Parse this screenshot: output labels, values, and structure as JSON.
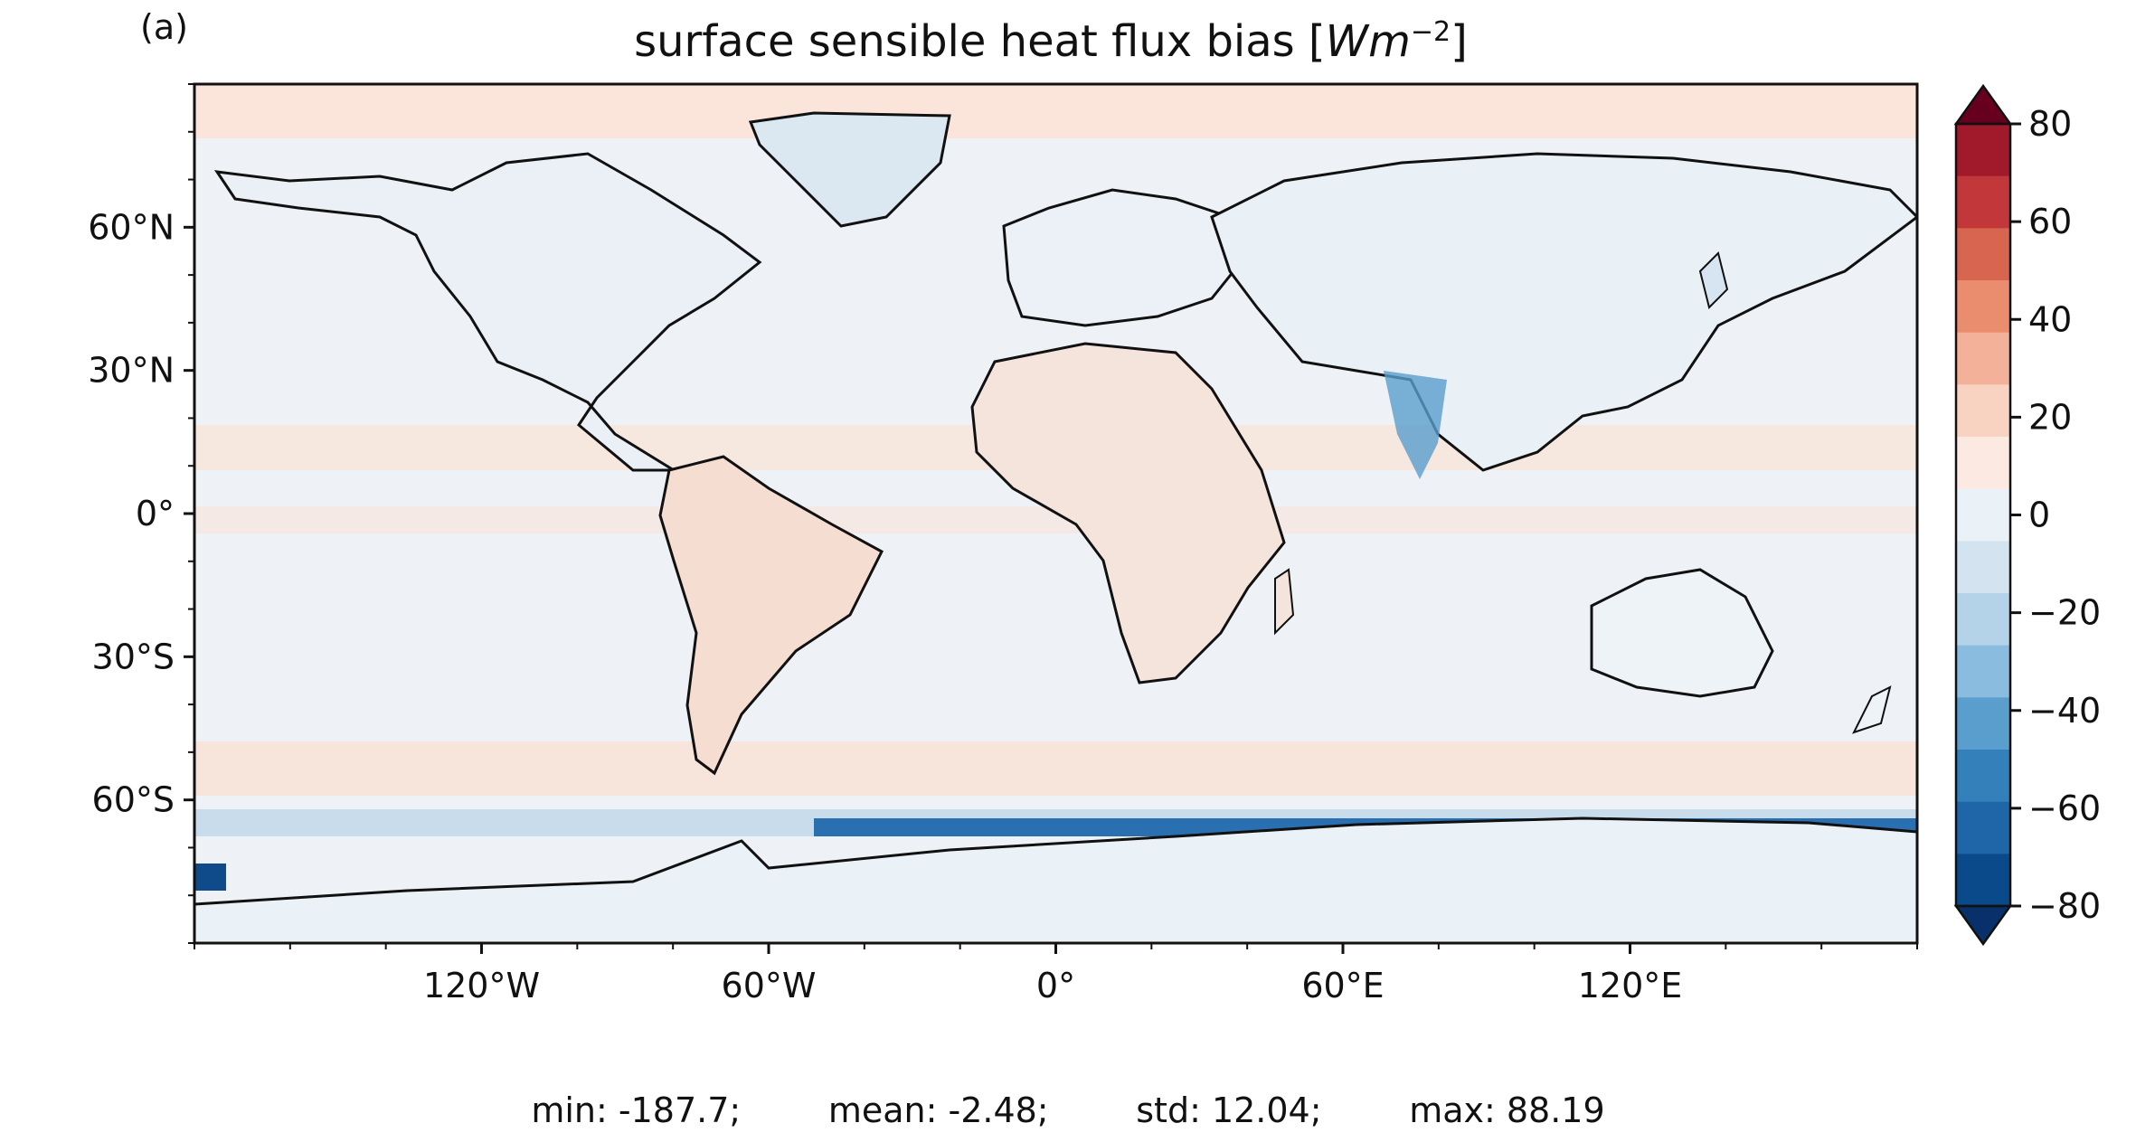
{
  "panel_label": "(a)",
  "title_prefix": "surface sensible heat flux bias [",
  "title_unit_W": "W",
  "title_unit_m": "m",
  "title_unit_exp": "−2",
  "title_suffix": "]",
  "stats": {
    "min": "min: -187.7;",
    "mean": "mean: -2.48;",
    "std": "std: 12.04;",
    "max": "max: 88.19"
  },
  "map": {
    "projection": "PlateCarree",
    "lon_range": [
      -180,
      180
    ],
    "lat_range": [
      -90,
      90
    ],
    "x_ticks": [
      "120°W",
      "60°W",
      "0°",
      "60°E",
      "120°E"
    ],
    "x_tick_values": [
      -120,
      -60,
      0,
      60,
      120
    ],
    "y_ticks": [
      "60°N",
      "30°N",
      "0°",
      "30°S",
      "60°S"
    ],
    "y_tick_values": [
      60,
      30,
      0,
      -30,
      -60
    ],
    "colormap": "RdBu_r",
    "background_color": "#eef2f6"
  },
  "colorbar": {
    "ticks": [
      "80",
      "60",
      "40",
      "20",
      "0",
      "−20",
      "−40",
      "−60",
      "−80"
    ],
    "tick_values": [
      80,
      60,
      40,
      20,
      0,
      -20,
      -40,
      -60,
      -80
    ],
    "range": [
      -80,
      80
    ],
    "extend": "both",
    "colors": [
      "#08306b",
      "#0b4a8a",
      "#1f66a8",
      "#3480bb",
      "#5a9ecd",
      "#89bcde",
      "#b4d3e8",
      "#d3e4f0",
      "#eaf1f7",
      "#fbe9e2",
      "#f9d3c2",
      "#f4b199",
      "#ea8d6f",
      "#d8654f",
      "#c2383a",
      "#a11a2c",
      "#67001f"
    ]
  }
}
